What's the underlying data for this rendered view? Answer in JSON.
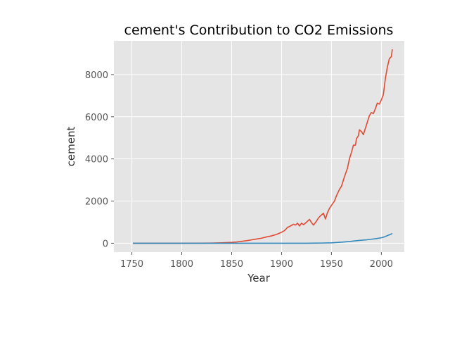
{
  "chart_data": {
    "type": "line",
    "title": "cement's Contribution to CO2 Emissions",
    "xlabel": "Year",
    "ylabel": "cement",
    "xlim": [
      1732,
      2023
    ],
    "ylim": [
      -420,
      9600
    ],
    "xticks": [
      1750,
      1800,
      1850,
      1900,
      1950,
      2000
    ],
    "yticks": [
      0,
      2000,
      4000,
      6000,
      8000
    ],
    "grid": true,
    "legend": "none",
    "series": [
      {
        "color": "#E24A33",
        "points": [
          [
            1751,
            0
          ],
          [
            1800,
            0
          ],
          [
            1820,
            5
          ],
          [
            1830,
            10
          ],
          [
            1840,
            20
          ],
          [
            1850,
            40
          ],
          [
            1855,
            60
          ],
          [
            1860,
            90
          ],
          [
            1865,
            120
          ],
          [
            1870,
            160
          ],
          [
            1875,
            200
          ],
          [
            1880,
            240
          ],
          [
            1885,
            300
          ],
          [
            1890,
            350
          ],
          [
            1895,
            420
          ],
          [
            1900,
            520
          ],
          [
            1903,
            600
          ],
          [
            1906,
            750
          ],
          [
            1909,
            820
          ],
          [
            1912,
            900
          ],
          [
            1914,
            860
          ],
          [
            1916,
            950
          ],
          [
            1918,
            820
          ],
          [
            1920,
            950
          ],
          [
            1922,
            880
          ],
          [
            1925,
            1000
          ],
          [
            1928,
            1130
          ],
          [
            1930,
            980
          ],
          [
            1932,
            860
          ],
          [
            1935,
            1050
          ],
          [
            1937,
            1200
          ],
          [
            1939,
            1300
          ],
          [
            1942,
            1420
          ],
          [
            1944,
            1150
          ],
          [
            1946,
            1450
          ],
          [
            1948,
            1650
          ],
          [
            1950,
            1800
          ],
          [
            1953,
            2000
          ],
          [
            1955,
            2250
          ],
          [
            1958,
            2550
          ],
          [
            1960,
            2700
          ],
          [
            1963,
            3150
          ],
          [
            1966,
            3550
          ],
          [
            1968,
            4000
          ],
          [
            1970,
            4300
          ],
          [
            1972,
            4650
          ],
          [
            1974,
            4650
          ],
          [
            1975,
            4950
          ],
          [
            1977,
            5100
          ],
          [
            1978,
            5380
          ],
          [
            1980,
            5300
          ],
          [
            1982,
            5150
          ],
          [
            1985,
            5600
          ],
          [
            1988,
            6050
          ],
          [
            1990,
            6200
          ],
          [
            1992,
            6150
          ],
          [
            1994,
            6380
          ],
          [
            1996,
            6650
          ],
          [
            1998,
            6600
          ],
          [
            2000,
            6800
          ],
          [
            2002,
            7050
          ],
          [
            2004,
            7800
          ],
          [
            2006,
            8350
          ],
          [
            2008,
            8750
          ],
          [
            2010,
            8850
          ],
          [
            2011,
            9200
          ]
        ]
      },
      {
        "color": "#348ABD",
        "points": [
          [
            1751,
            0
          ],
          [
            1800,
            0
          ],
          [
            1850,
            0
          ],
          [
            1900,
            0
          ],
          [
            1925,
            0
          ],
          [
            1930,
            5
          ],
          [
            1940,
            10
          ],
          [
            1950,
            20
          ],
          [
            1960,
            50
          ],
          [
            1970,
            90
          ],
          [
            1975,
            120
          ],
          [
            1980,
            140
          ],
          [
            1985,
            160
          ],
          [
            1990,
            190
          ],
          [
            1995,
            220
          ],
          [
            2000,
            260
          ],
          [
            2003,
            300
          ],
          [
            2006,
            360
          ],
          [
            2009,
            420
          ],
          [
            2011,
            460
          ]
        ]
      }
    ]
  }
}
